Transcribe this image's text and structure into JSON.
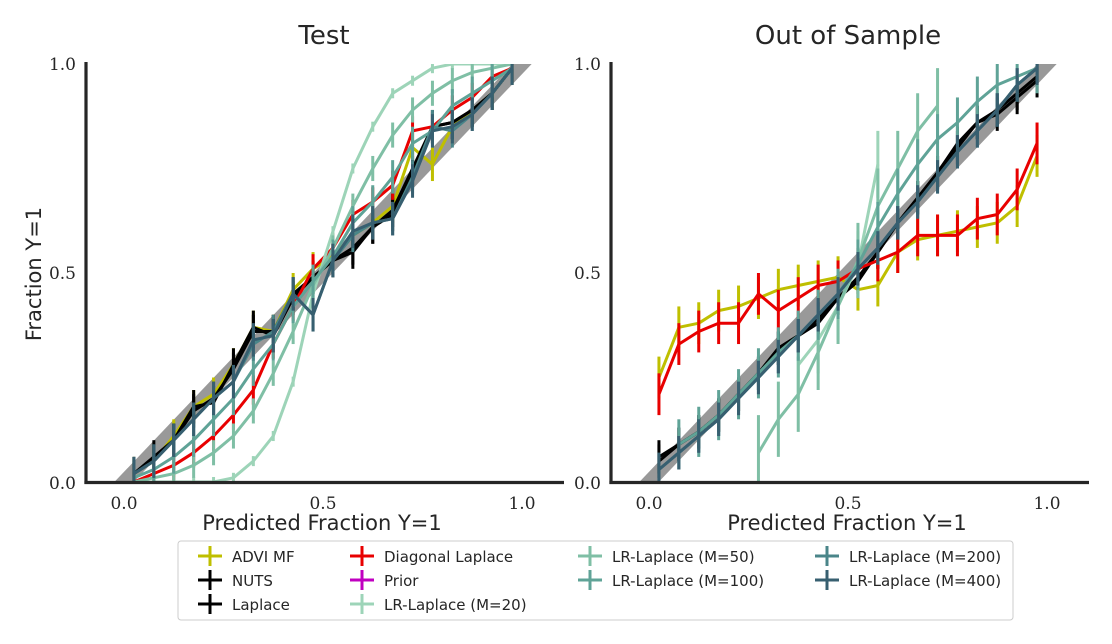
{
  "chart_data": [
    {
      "type": "line",
      "title": "Test",
      "xlabel": "Predicted Fraction Y=1",
      "ylabel": "Fraction Y=1",
      "xlim": [
        -0.1,
        1.1
      ],
      "ylim": [
        0.0,
        1.0
      ],
      "xticks": [
        {
          "v": 0.0,
          "label": "0.0"
        },
        {
          "v": 0.5,
          "label": "0.5"
        },
        {
          "v": 1.0,
          "label": "1.0"
        }
      ],
      "yticks": [
        {
          "v": 0.0,
          "label": "0.0"
        },
        {
          "v": 0.5,
          "label": "0.5"
        },
        {
          "v": 1.0,
          "label": "1.0"
        }
      ],
      "reference": {
        "from": [
          0,
          0
        ],
        "to": [
          1,
          1
        ],
        "color": "#999999"
      },
      "series": [
        {
          "name": "ADVI MF",
          "color": "#bfbf00",
          "err": 0.04,
          "x": [
            0.025,
            0.075,
            0.125,
            0.175,
            0.225,
            0.275,
            0.325,
            0.375,
            0.425,
            0.475,
            0.525,
            0.575,
            0.625,
            0.675,
            0.725,
            0.775,
            0.825,
            0.875,
            0.925,
            0.975
          ],
          "y": [
            0.02,
            0.05,
            0.11,
            0.18,
            0.21,
            0.28,
            0.37,
            0.36,
            0.46,
            0.51,
            0.54,
            0.59,
            0.62,
            0.66,
            0.8,
            0.76,
            0.85,
            0.89,
            0.93,
            0.99
          ]
        },
        {
          "name": "NUTS",
          "color": "#000000",
          "err": 0.04,
          "x": [
            0.025,
            0.075,
            0.125,
            0.175,
            0.225,
            0.275,
            0.325,
            0.375,
            0.425,
            0.475,
            0.525,
            0.575,
            0.625,
            0.675,
            0.725,
            0.775,
            0.825,
            0.875,
            0.925,
            0.975
          ],
          "y": [
            0.02,
            0.06,
            0.1,
            0.18,
            0.19,
            0.28,
            0.37,
            0.35,
            0.44,
            0.49,
            0.53,
            0.55,
            0.61,
            0.64,
            0.74,
            0.85,
            0.86,
            0.89,
            0.93,
            0.99
          ]
        },
        {
          "name": "Laplace",
          "color": "#000000",
          "err": 0.04,
          "x": [
            0.025,
            0.075,
            0.125,
            0.175,
            0.225,
            0.275,
            0.325,
            0.375,
            0.425,
            0.475,
            0.525,
            0.575,
            0.625,
            0.675,
            0.725,
            0.775,
            0.825,
            0.875,
            0.925,
            0.975
          ],
          "y": [
            0.02,
            0.05,
            0.1,
            0.17,
            0.2,
            0.27,
            0.36,
            0.36,
            0.45,
            0.49,
            0.53,
            0.56,
            0.61,
            0.65,
            0.75,
            0.85,
            0.86,
            0.89,
            0.93,
            0.99
          ]
        },
        {
          "name": "Diagonal Laplace",
          "color": "#e80000",
          "err": 0.035,
          "x": [
            0.025,
            0.075,
            0.125,
            0.175,
            0.225,
            0.275,
            0.325,
            0.375,
            0.425,
            0.475,
            0.525,
            0.575,
            0.625,
            0.675,
            0.725,
            0.775,
            0.825,
            0.875,
            0.925,
            0.975
          ],
          "y": [
            0.0,
            0.02,
            0.04,
            0.07,
            0.11,
            0.16,
            0.22,
            0.33,
            0.42,
            0.51,
            0.56,
            0.64,
            0.67,
            0.71,
            0.84,
            0.85,
            0.89,
            0.92,
            0.97,
            0.99
          ]
        },
        {
          "name": "Prior",
          "color": "#c000c0",
          "err": 0.0,
          "x": [],
          "y": []
        },
        {
          "name": "LR-Laplace (M=20)",
          "color": "#9dd4b8",
          "err": 0.012,
          "x": [
            0.025,
            0.075,
            0.125,
            0.175,
            0.225,
            0.275,
            0.325,
            0.375,
            0.425,
            0.475,
            0.525,
            0.575,
            0.625,
            0.675,
            0.725,
            0.775,
            0.825,
            0.875,
            0.925,
            0.975
          ],
          "y": [
            0.0,
            0.0,
            0.0,
            0.0,
            0.0,
            0.01,
            0.05,
            0.11,
            0.24,
            0.45,
            0.6,
            0.75,
            0.85,
            0.93,
            0.96,
            0.99,
            1.0,
            1.0,
            1.0,
            1.0
          ]
        },
        {
          "name": "LR-Laplace (M=50)",
          "color": "#7fbfa5",
          "err": 0.03,
          "x": [
            0.025,
            0.075,
            0.125,
            0.175,
            0.225,
            0.275,
            0.325,
            0.375,
            0.425,
            0.475,
            0.525,
            0.575,
            0.625,
            0.675,
            0.725,
            0.775,
            0.825,
            0.875,
            0.925,
            0.975
          ],
          "y": [
            0.0,
            0.01,
            0.02,
            0.04,
            0.07,
            0.11,
            0.17,
            0.26,
            0.36,
            0.47,
            0.56,
            0.66,
            0.75,
            0.83,
            0.89,
            0.93,
            0.96,
            0.98,
            0.99,
            1.0
          ]
        },
        {
          "name": "LR-Laplace (M=100)",
          "color": "#5fa397",
          "err": 0.04,
          "x": [
            0.025,
            0.075,
            0.125,
            0.175,
            0.225,
            0.275,
            0.325,
            0.375,
            0.425,
            0.475,
            0.525,
            0.575,
            0.625,
            0.675,
            0.725,
            0.775,
            0.825,
            0.875,
            0.925,
            0.975
          ],
          "y": [
            0.01,
            0.03,
            0.06,
            0.1,
            0.15,
            0.2,
            0.27,
            0.33,
            0.42,
            0.48,
            0.54,
            0.62,
            0.67,
            0.73,
            0.81,
            0.84,
            0.9,
            0.93,
            0.96,
            0.99
          ]
        },
        {
          "name": "LR-Laplace (M=200)",
          "color": "#4a8589",
          "err": 0.04,
          "x": [
            0.025,
            0.075,
            0.125,
            0.175,
            0.225,
            0.275,
            0.325,
            0.375,
            0.425,
            0.475,
            0.525,
            0.575,
            0.625,
            0.675,
            0.725,
            0.775,
            0.825,
            0.875,
            0.925,
            0.975
          ],
          "y": [
            0.02,
            0.05,
            0.1,
            0.15,
            0.2,
            0.24,
            0.33,
            0.36,
            0.45,
            0.4,
            0.53,
            0.59,
            0.62,
            0.63,
            0.73,
            0.85,
            0.84,
            0.88,
            0.93,
            0.99
          ]
        },
        {
          "name": "LR-Laplace (M=400)",
          "color": "#375f70",
          "err": 0.04,
          "x": [
            0.025,
            0.075,
            0.125,
            0.175,
            0.225,
            0.275,
            0.325,
            0.375,
            0.425,
            0.475,
            0.525,
            0.575,
            0.625,
            0.675,
            0.725,
            0.775,
            0.825,
            0.875,
            0.925,
            0.975
          ],
          "y": [
            0.02,
            0.05,
            0.1,
            0.15,
            0.2,
            0.24,
            0.34,
            0.35,
            0.45,
            0.4,
            0.53,
            0.6,
            0.62,
            0.63,
            0.72,
            0.84,
            0.85,
            0.88,
            0.93,
            0.99
          ]
        }
      ]
    },
    {
      "type": "line",
      "title": "Out of Sample",
      "xlabel": "Predicted Fraction Y=1",
      "ylabel": "",
      "xlim": [
        -0.1,
        1.1
      ],
      "ylim": [
        0.0,
        1.0
      ],
      "xticks": [
        {
          "v": 0.0,
          "label": "0.0"
        },
        {
          "v": 0.5,
          "label": "0.5"
        },
        {
          "v": 1.0,
          "label": "1.0"
        }
      ],
      "yticks": [
        {
          "v": 0.0,
          "label": "0.0"
        },
        {
          "v": 0.5,
          "label": "0.5"
        },
        {
          "v": 1.0,
          "label": "1.0"
        }
      ],
      "reference": {
        "from": [
          0,
          0
        ],
        "to": [
          1,
          1
        ],
        "color": "#999999"
      },
      "series": [
        {
          "name": "ADVI MF",
          "color": "#bfbf00",
          "err": 0.05,
          "x": [
            0.025,
            0.075,
            0.125,
            0.175,
            0.225,
            0.275,
            0.325,
            0.375,
            0.425,
            0.475,
            0.525,
            0.575,
            0.625,
            0.675,
            0.725,
            0.775,
            0.825,
            0.875,
            0.925,
            0.975
          ],
          "y": [
            0.25,
            0.37,
            0.38,
            0.41,
            0.42,
            0.44,
            0.46,
            0.47,
            0.48,
            0.49,
            0.46,
            0.47,
            0.55,
            0.58,
            0.59,
            0.6,
            0.61,
            0.62,
            0.66,
            0.78
          ]
        },
        {
          "name": "NUTS",
          "color": "#000000",
          "err": 0.04,
          "x": [
            0.025,
            0.075,
            0.125,
            0.175,
            0.225,
            0.275,
            0.325,
            0.375,
            0.425,
            0.475,
            0.525,
            0.575,
            0.625,
            0.675,
            0.725,
            0.775,
            0.825,
            0.875,
            0.925,
            0.975
          ],
          "y": [
            0.06,
            0.09,
            0.12,
            0.16,
            0.21,
            0.26,
            0.32,
            0.35,
            0.38,
            0.44,
            0.48,
            0.55,
            0.62,
            0.68,
            0.74,
            0.81,
            0.86,
            0.88,
            0.92,
            0.96
          ]
        },
        {
          "name": "Laplace",
          "color": "#000000",
          "err": 0.04,
          "x": [
            0.025,
            0.075,
            0.125,
            0.175,
            0.225,
            0.275,
            0.325,
            0.375,
            0.425,
            0.475,
            0.525,
            0.575,
            0.625,
            0.675,
            0.725,
            0.775,
            0.825,
            0.875,
            0.925,
            0.975
          ],
          "y": [
            0.05,
            0.09,
            0.12,
            0.16,
            0.21,
            0.26,
            0.32,
            0.35,
            0.39,
            0.44,
            0.49,
            0.55,
            0.62,
            0.68,
            0.74,
            0.8,
            0.86,
            0.89,
            0.93,
            0.97
          ]
        },
        {
          "name": "Diagonal Laplace",
          "color": "#e80000",
          "err": 0.05,
          "x": [
            0.025,
            0.075,
            0.125,
            0.175,
            0.225,
            0.275,
            0.325,
            0.375,
            0.425,
            0.475,
            0.525,
            0.575,
            0.625,
            0.675,
            0.725,
            0.775,
            0.825,
            0.875,
            0.925,
            0.975
          ],
          "y": [
            0.21,
            0.33,
            0.36,
            0.38,
            0.38,
            0.45,
            0.41,
            0.44,
            0.47,
            0.48,
            0.51,
            0.53,
            0.55,
            0.59,
            0.59,
            0.59,
            0.63,
            0.64,
            0.7,
            0.81
          ]
        },
        {
          "name": "Prior",
          "color": "#c000c0",
          "err": 0.0,
          "x": [],
          "y": []
        },
        {
          "name": "LR-Laplace (M=20)",
          "color": "#9dd4b8",
          "err": 0.08,
          "x": [
            0.375,
            0.425,
            0.475,
            0.525,
            0.575
          ],
          "y": [
            0.28,
            0.34,
            0.42,
            0.52,
            0.76
          ]
        },
        {
          "name": "LR-Laplace (M=50)",
          "color": "#7fbfa5",
          "err": 0.09,
          "x": [
            0.275,
            0.325,
            0.375,
            0.425,
            0.475,
            0.525,
            0.575,
            0.625,
            0.675,
            0.725
          ],
          "y": [
            0.07,
            0.15,
            0.21,
            0.31,
            0.42,
            0.53,
            0.66,
            0.75,
            0.84,
            0.9
          ]
        },
        {
          "name": "LR-Laplace (M=100)",
          "color": "#5fa397",
          "err": 0.06,
          "x": [
            0.075,
            0.125,
            0.175,
            0.225,
            0.275,
            0.325,
            0.375,
            0.425,
            0.475,
            0.525,
            0.575,
            0.625,
            0.675,
            0.725,
            0.775,
            0.825,
            0.875,
            0.925,
            0.975
          ],
          "y": [
            0.09,
            0.12,
            0.16,
            0.21,
            0.26,
            0.31,
            0.35,
            0.4,
            0.45,
            0.52,
            0.61,
            0.69,
            0.76,
            0.82,
            0.86,
            0.91,
            0.95,
            0.97,
            0.99
          ]
        },
        {
          "name": "LR-Laplace (M=200)",
          "color": "#4a8589",
          "err": 0.04,
          "x": [
            0.025,
            0.075,
            0.125,
            0.175,
            0.225,
            0.275,
            0.325,
            0.375,
            0.425,
            0.475,
            0.525,
            0.575,
            0.625,
            0.675,
            0.725,
            0.775,
            0.825,
            0.875,
            0.925,
            0.975
          ],
          "y": [
            0.03,
            0.07,
            0.11,
            0.15,
            0.2,
            0.25,
            0.3,
            0.35,
            0.4,
            0.45,
            0.51,
            0.56,
            0.62,
            0.67,
            0.73,
            0.79,
            0.84,
            0.89,
            0.95,
            0.99
          ]
        },
        {
          "name": "LR-Laplace (M=400)",
          "color": "#375f70",
          "err": 0.04,
          "x": [
            0.025,
            0.075,
            0.125,
            0.175,
            0.225,
            0.275,
            0.325,
            0.375,
            0.425,
            0.475,
            0.525,
            0.575,
            0.625,
            0.675,
            0.725,
            0.775,
            0.825,
            0.875,
            0.925,
            0.975
          ],
          "y": [
            0.03,
            0.07,
            0.11,
            0.15,
            0.2,
            0.25,
            0.3,
            0.35,
            0.4,
            0.45,
            0.51,
            0.56,
            0.62,
            0.67,
            0.73,
            0.79,
            0.84,
            0.89,
            0.95,
            0.99
          ]
        }
      ]
    }
  ]
}
